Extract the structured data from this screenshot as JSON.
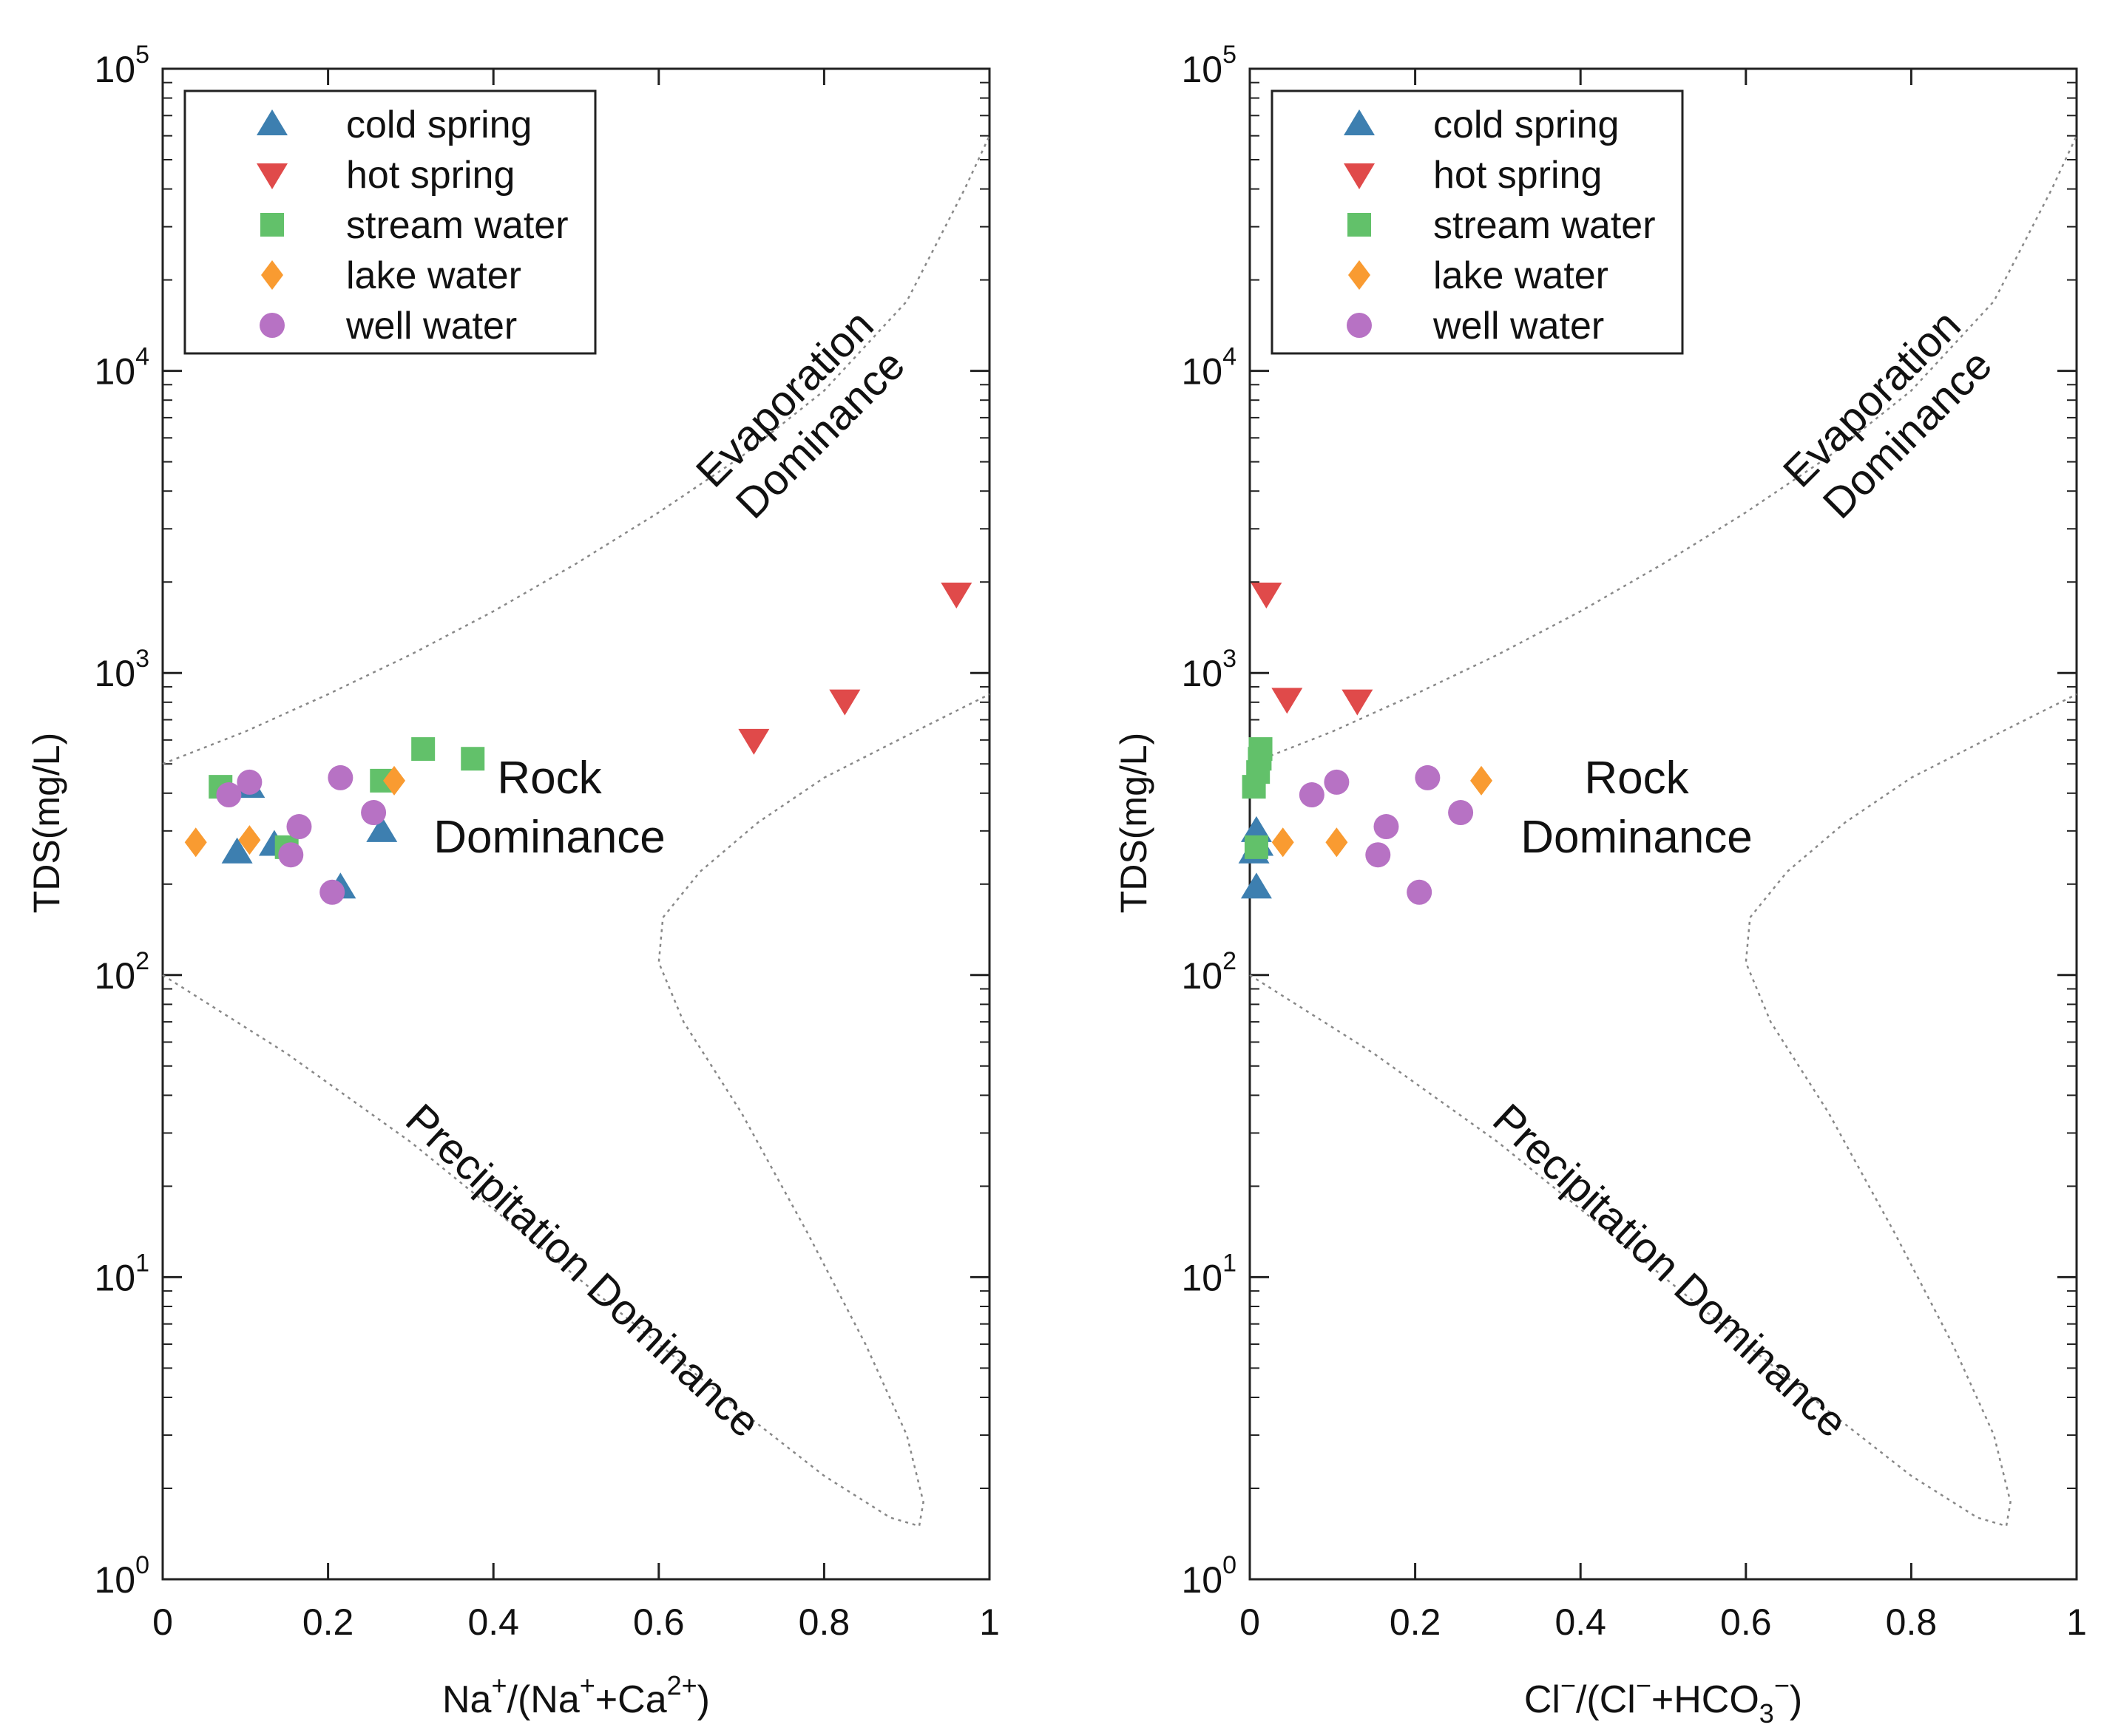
{
  "chart_data": [
    {
      "type": "scatter",
      "panel": "left",
      "xlabel": {
        "base": "Na",
        "sup1": "+",
        "mid": "/(Na",
        "sup2": "+",
        "mid2": "+Ca",
        "sup3": "2+",
        "end": ")"
      },
      "ylabel": "TDS(mg/L)",
      "xlim": [
        0,
        1
      ],
      "ylim_log10": [
        0,
        5
      ],
      "x_ticks": [
        "0",
        "0.2",
        "0.4",
        "0.6",
        "0.8",
        "1"
      ],
      "y_ticks": [
        {
          "base": "10",
          "exp": "0"
        },
        {
          "base": "10",
          "exp": "1"
        },
        {
          "base": "10",
          "exp": "2"
        },
        {
          "base": "10",
          "exp": "3"
        },
        {
          "base": "10",
          "exp": "4"
        },
        {
          "base": "10",
          "exp": "5"
        }
      ],
      "regions": {
        "evaporation": [
          "Evaporation",
          "Dominance"
        ],
        "rock": [
          "Rock",
          "Dominance"
        ],
        "precipitation": "Precipitation Dominance"
      },
      "series": [
        {
          "name": "cold spring",
          "marker": "triangle-up",
          "color": "#3d7fb0",
          "points": [
            [
              0.09,
              255
            ],
            [
              0.105,
              420
            ],
            [
              0.135,
              270
            ],
            [
              0.215,
              195
            ],
            [
              0.265,
              300
            ]
          ]
        },
        {
          "name": "hot spring",
          "marker": "triangle-down",
          "color": "#e04a4a",
          "points": [
            [
              0.715,
              600
            ],
            [
              0.825,
              810
            ],
            [
              0.96,
              1830
            ]
          ]
        },
        {
          "name": "stream water",
          "marker": "square",
          "color": "#62c16a",
          "points": [
            [
              0.07,
              420
            ],
            [
              0.15,
              265
            ],
            [
              0.265,
              440
            ],
            [
              0.315,
              560
            ],
            [
              0.375,
              520
            ]
          ]
        },
        {
          "name": "lake water",
          "marker": "diamond",
          "color": "#f99b31",
          "points": [
            [
              0.04,
              275
            ],
            [
              0.105,
              280
            ],
            [
              0.28,
              440
            ]
          ]
        },
        {
          "name": "well water",
          "marker": "circle",
          "color": "#b772c4",
          "points": [
            [
              0.08,
              395
            ],
            [
              0.105,
              435
            ],
            [
              0.155,
              250
            ],
            [
              0.165,
              310
            ],
            [
              0.205,
              188
            ],
            [
              0.215,
              450
            ],
            [
              0.255,
              345
            ]
          ]
        }
      ]
    },
    {
      "type": "scatter",
      "panel": "right",
      "xlabel": {
        "base": "Cl",
        "sup1": "−",
        "mid": "/(Cl",
        "sup2": "−",
        "mid2": "+HCO",
        "sub3": "3",
        "sup3": "−",
        "end": ")"
      },
      "ylabel": "TDS(mg/L)",
      "xlim": [
        0,
        1
      ],
      "ylim_log10": [
        0,
        5
      ],
      "x_ticks": [
        "0",
        "0.2",
        "0.4",
        "0.6",
        "0.8",
        "1"
      ],
      "y_ticks": [
        {
          "base": "10",
          "exp": "0"
        },
        {
          "base": "10",
          "exp": "1"
        },
        {
          "base": "10",
          "exp": "2"
        },
        {
          "base": "10",
          "exp": "3"
        },
        {
          "base": "10",
          "exp": "4"
        },
        {
          "base": "10",
          "exp": "5"
        }
      ],
      "regions": {
        "evaporation": [
          "Evaporation",
          "Dominance"
        ],
        "rock": [
          "Rock",
          "Dominance"
        ],
        "precipitation": "Precipitation Dominance"
      },
      "series": [
        {
          "name": "cold spring",
          "marker": "triangle-up",
          "color": "#3d7fb0",
          "points": [
            [
              0.005,
              255
            ],
            [
              0.008,
              300
            ],
            [
              0.008,
              195
            ],
            [
              0.01,
              270
            ]
          ]
        },
        {
          "name": "hot spring",
          "marker": "triangle-down",
          "color": "#e04a4a",
          "points": [
            [
              0.02,
              1830
            ],
            [
              0.045,
              820
            ],
            [
              0.13,
              810
            ]
          ]
        },
        {
          "name": "stream water",
          "marker": "square",
          "color": "#62c16a",
          "points": [
            [
              0.005,
              420
            ],
            [
              0.01,
              470
            ],
            [
              0.012,
              520
            ],
            [
              0.013,
              560
            ],
            [
              0.008,
              265
            ]
          ]
        },
        {
          "name": "lake water",
          "marker": "diamond",
          "color": "#f99b31",
          "points": [
            [
              0.04,
              275
            ],
            [
              0.105,
              275
            ],
            [
              0.28,
              440
            ]
          ]
        },
        {
          "name": "well water",
          "marker": "circle",
          "color": "#b772c4",
          "points": [
            [
              0.075,
              395
            ],
            [
              0.105,
              435
            ],
            [
              0.155,
              250
            ],
            [
              0.165,
              310
            ],
            [
              0.205,
              188
            ],
            [
              0.215,
              450
            ],
            [
              0.255,
              345
            ]
          ]
        }
      ]
    }
  ]
}
